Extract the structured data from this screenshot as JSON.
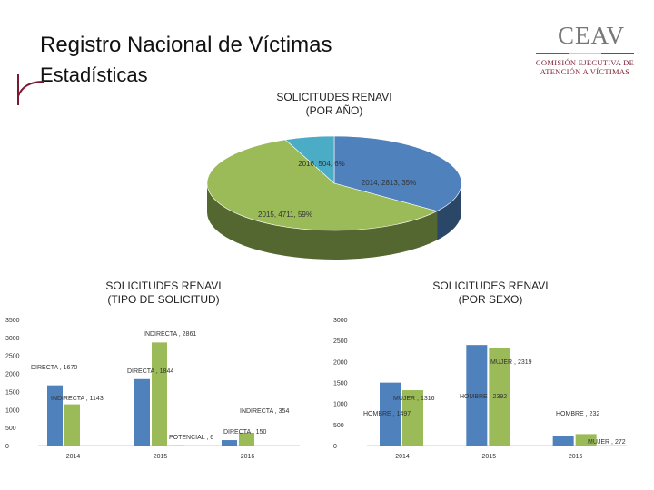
{
  "header": {
    "title": "Registro Nacional de Víctimas",
    "subtitle": "Estadísticas"
  },
  "logo": {
    "mark": "CEAV",
    "line1": "COMISIÓN EJECUTIVA DE",
    "line2": "ATENCIÓN A VÍCTIMAS"
  },
  "colors": {
    "blue": "#4f81bd",
    "green": "#9bbb59",
    "teal": "#4bacc6",
    "brand": "#7a1a30"
  },
  "chart_data": [
    {
      "type": "pie",
      "title_line1": "SOLICITUDES RENAVI",
      "title_line2": "(POR AÑO)",
      "slices": [
        {
          "label": "2014, 2813, 35%",
          "value": 2813,
          "color": "#4f81bd"
        },
        {
          "label": "2015, 4711, 59%",
          "value": 4711,
          "color": "#9bbb59"
        },
        {
          "label": "2016, 504, 6%",
          "value": 504,
          "color": "#4bacc6"
        }
      ]
    },
    {
      "type": "bar",
      "title_line1": "SOLICITUDES RENAVI",
      "title_line2": "(TIPO DE SOLICITUD)",
      "categories": [
        "2014",
        "2015",
        "2016"
      ],
      "ylim": [
        0,
        3500
      ],
      "yticks": [
        "0",
        "500",
        "1000",
        "1500",
        "2000",
        "2500",
        "3000",
        "3500"
      ],
      "series": [
        {
          "name": "DIRECTA",
          "color": "#4f81bd",
          "values": [
            1670,
            1844,
            150
          ],
          "labels": [
            "DIRECTA , 1670",
            "DIRECTA , 1844",
            "DIRECTA , 150"
          ]
        },
        {
          "name": "INDIRECTA",
          "color": "#9bbb59",
          "values": [
            1143,
            2861,
            354
          ],
          "labels": [
            "INDIRECTA , 1143",
            "INDIRECTA , 2861",
            "INDIRECTA , 354"
          ]
        },
        {
          "name": "POTENCIAL",
          "color": "#4bacc6",
          "values": [
            0,
            6,
            0
          ],
          "labels": [
            "",
            "POTENCIAL , 6",
            ""
          ]
        }
      ]
    },
    {
      "type": "bar",
      "title_line1": "SOLICITUDES RENAVI",
      "title_line2": "(POR SEXO)",
      "categories": [
        "2014",
        "2015",
        "2016"
      ],
      "ylim": [
        0,
        3000
      ],
      "yticks": [
        "0",
        "500",
        "1000",
        "1500",
        "2000",
        "2500",
        "3000"
      ],
      "series": [
        {
          "name": "HOMBRE",
          "color": "#4f81bd",
          "values": [
            1497,
            2392,
            232
          ],
          "labels": [
            "HOMBRE , 1497",
            "HOMBRE , 2392",
            "HOMBRE , 232"
          ]
        },
        {
          "name": "MUJER",
          "color": "#9bbb59",
          "values": [
            1316,
            2319,
            272
          ],
          "labels": [
            "MUJER , 1316",
            "MUJER , 2319",
            "MUJER , 272"
          ]
        }
      ]
    }
  ]
}
